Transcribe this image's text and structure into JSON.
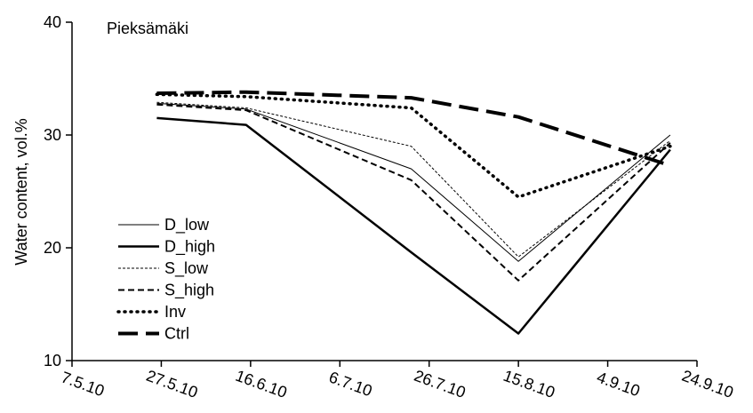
{
  "chart_data": {
    "type": "line",
    "title": "Pieksämäki",
    "xlabel": "",
    "ylabel": "Water content, vol.%",
    "x_ticks": [
      "7.5.10",
      "27.5.10",
      "16.6.10",
      "6.7.10",
      "26.7.10",
      "15.8.10",
      "4.9.10",
      "24.9.10"
    ],
    "x": [
      "2010-05-26",
      "2010-06-15",
      "2010-07-22",
      "2010-08-15",
      "2010-09-18"
    ],
    "xlim": [
      "2010-05-07",
      "2010-09-24"
    ],
    "ylim": [
      10,
      40
    ],
    "y_ticks": [
      10,
      20,
      30,
      40
    ],
    "grid": false,
    "legend_position": "left",
    "series": [
      {
        "name": "D_low",
        "style": "thin-solid",
        "color": "#000000",
        "values": [
          32.8,
          32.3,
          27.0,
          18.8,
          30.0
        ]
      },
      {
        "name": "D_high",
        "style": "thick-solid",
        "color": "#000000",
        "values": [
          31.5,
          30.9,
          19.6,
          12.4,
          28.7
        ]
      },
      {
        "name": "S_low",
        "style": "thin-dashed",
        "color": "#000000",
        "values": [
          32.9,
          32.4,
          29.0,
          19.2,
          29.5
        ]
      },
      {
        "name": "S_high",
        "style": "dashed",
        "color": "#000000",
        "values": [
          32.7,
          32.2,
          26.0,
          17.1,
          29.3
        ]
      },
      {
        "name": "Inv",
        "style": "dotted",
        "color": "#000000",
        "values": [
          33.6,
          33.4,
          32.4,
          24.5,
          29.0
        ]
      },
      {
        "name": "Ctrl",
        "style": "long-dashed",
        "color": "#000000",
        "values": [
          33.7,
          33.8,
          33.3,
          31.6,
          27.3
        ]
      }
    ]
  }
}
